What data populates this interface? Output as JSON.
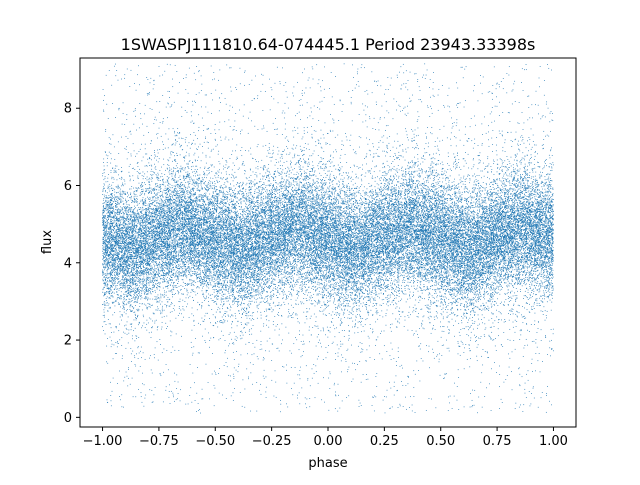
{
  "chart_data": {
    "type": "scatter",
    "title": "1SWASPJ111810.64-074445.1 Period 23943.33398s",
    "xlabel": "phase",
    "ylabel": "flux",
    "xlim": [
      -1.1,
      1.1
    ],
    "ylim": [
      -0.25,
      9.3
    ],
    "x_ticks": [
      -1.0,
      -0.75,
      -0.5,
      -0.25,
      0.0,
      0.25,
      0.5,
      0.75,
      1.0
    ],
    "x_tick_labels": [
      "−1.00",
      "−0.75",
      "−0.50",
      "−0.25",
      "0.00",
      "0.25",
      "0.50",
      "0.75",
      "1.00"
    ],
    "y_ticks": [
      0,
      2,
      4,
      6,
      8
    ],
    "y_tick_labels": [
      "0",
      "2",
      "4",
      "6",
      "8"
    ],
    "grid": false,
    "point_color": "#1f77b4",
    "series": [
      {
        "phase_range": [
          -1.0,
          1.0
        ],
        "flux_range": [
          0.1,
          9.15
        ],
        "median_flux_curve": {
          "phase": [
            -1.0,
            -0.875,
            -0.75,
            -0.625,
            -0.5,
            -0.375,
            -0.25,
            -0.125,
            0.0,
            0.125,
            0.25,
            0.375,
            0.5,
            0.625,
            0.75,
            0.875,
            1.0
          ],
          "flux": [
            4.6,
            4.3,
            4.7,
            4.9,
            4.6,
            4.3,
            4.7,
            4.9,
            4.6,
            4.3,
            4.7,
            4.9,
            4.6,
            4.3,
            4.7,
            4.9,
            4.6
          ]
        },
        "core_spread": [
          3.2,
          6.2
        ],
        "approx_point_count": 40000
      }
    ]
  }
}
